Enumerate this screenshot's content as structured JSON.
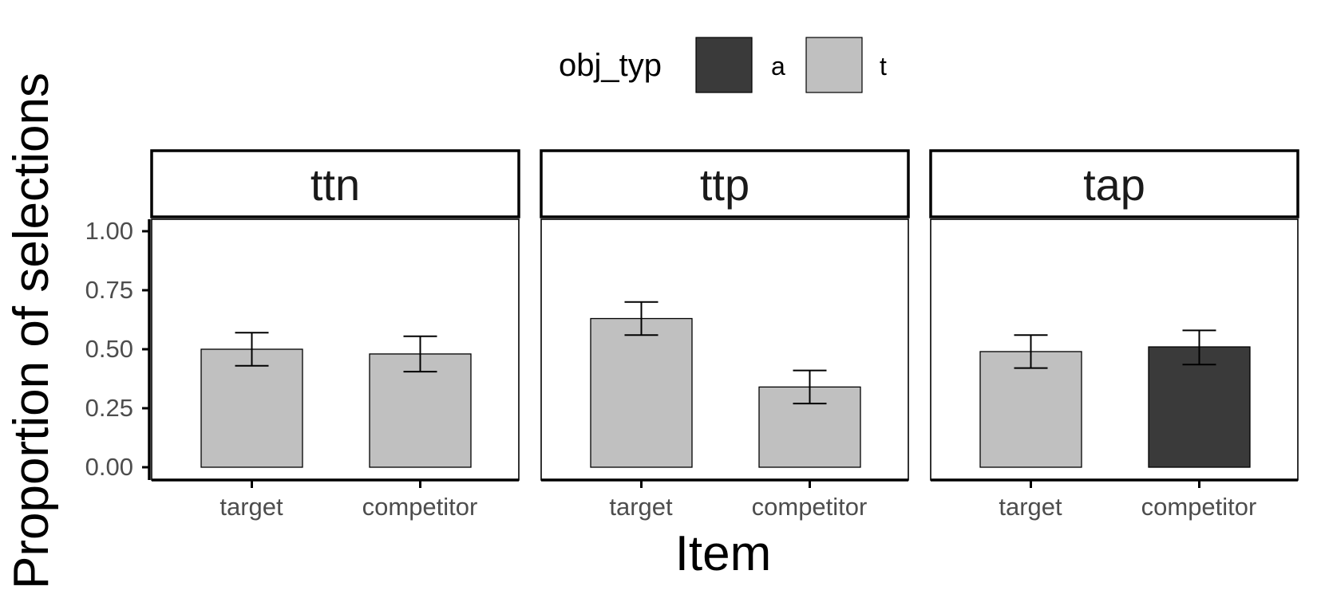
{
  "chart_data": {
    "type": "bar",
    "xlabel": "Item",
    "ylabel": "Proportion of selections",
    "ylim": [
      0,
      1
    ],
    "yticks": [
      "0.00",
      "0.25",
      "0.50",
      "0.75",
      "1.00"
    ],
    "categories": [
      "target",
      "competitor"
    ],
    "legend": {
      "title": "obj_typ",
      "position": "top",
      "entries": [
        {
          "key": "a",
          "label": "a",
          "color": "#3a3a3a"
        },
        {
          "key": "t",
          "label": "t",
          "color": "#c0c0c0"
        }
      ]
    },
    "panels": [
      {
        "label": "ttn",
        "bars": [
          {
            "category": "target",
            "obj_typ": "t",
            "value": 0.5,
            "err_low": 0.43,
            "err_high": 0.57
          },
          {
            "category": "competitor",
            "obj_typ": "t",
            "value": 0.48,
            "err_low": 0.405,
            "err_high": 0.555
          }
        ]
      },
      {
        "label": "ttp",
        "bars": [
          {
            "category": "target",
            "obj_typ": "t",
            "value": 0.63,
            "err_low": 0.56,
            "err_high": 0.7
          },
          {
            "category": "competitor",
            "obj_typ": "t",
            "value": 0.34,
            "err_low": 0.27,
            "err_high": 0.41
          }
        ]
      },
      {
        "label": "tap",
        "bars": [
          {
            "category": "target",
            "obj_typ": "t",
            "value": 0.49,
            "err_low": 0.42,
            "err_high": 0.56
          },
          {
            "category": "competitor",
            "obj_typ": "a",
            "value": 0.51,
            "err_low": 0.435,
            "err_high": 0.58
          }
        ]
      }
    ],
    "grid": false
  }
}
